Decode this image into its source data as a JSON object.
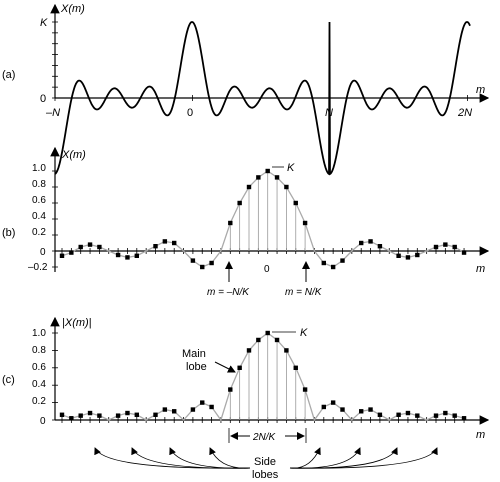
{
  "chart_data": [
    {
      "id": "a",
      "type": "line",
      "panel_label": "(a)",
      "ylabel": "X(m)",
      "xlabel": "m",
      "x_ticks": [
        "–N",
        "0",
        "N",
        "2N"
      ],
      "y_ticks": [
        "0",
        "K"
      ],
      "description_series": "periodic sinc, peaks of height K at m = −N, 0, N, 2N",
      "xlim": [
        -1,
        2
      ],
      "ylim": [
        -0.25,
        1
      ]
    },
    {
      "id": "b",
      "type": "scatter",
      "panel_label": "(b)",
      "ylabel": "X(m)",
      "xlabel": "m",
      "y_ticks": [
        "1.0",
        "0.8",
        "0.6",
        "0.4",
        "0.2",
        "0",
        "–0.2"
      ],
      "ylim": [
        -0.2,
        1.0
      ],
      "x_center_label": "0",
      "peak_label": "K",
      "annotations": [
        "m = –N/K",
        "m = N/K"
      ],
      "points": [
        -0.06,
        -0.02,
        0.05,
        0.08,
        0.05,
        0.0,
        -0.05,
        -0.08,
        -0.06,
        0.0,
        0.06,
        0.12,
        0.1,
        0.0,
        -0.12,
        -0.2,
        -0.15,
        0.0,
        0.35,
        0.6,
        0.8,
        0.92,
        1.0,
        0.92,
        0.8,
        0.6,
        0.35,
        0.0,
        -0.15,
        -0.2,
        -0.12,
        0.0,
        0.1,
        0.12,
        0.06,
        0.0,
        -0.06,
        -0.08,
        -0.05,
        0.0,
        0.05,
        0.08,
        0.05,
        -0.02
      ]
    },
    {
      "id": "c",
      "type": "scatter",
      "panel_label": "(c)",
      "ylabel": "|X(m)|",
      "xlabel": "m",
      "y_ticks": [
        "1.0",
        "0.8",
        "0.6",
        "0.4",
        "0.2",
        "0"
      ],
      "ylim": [
        0,
        1.0
      ],
      "peak_label": "K",
      "main_lobe_label": [
        "Main",
        "lobe"
      ],
      "width_label": "2N/K",
      "side_lobes_label": [
        "Side",
        "lobes"
      ],
      "points": [
        0.06,
        0.02,
        0.05,
        0.08,
        0.05,
        0.0,
        0.05,
        0.08,
        0.06,
        0.0,
        0.06,
        0.12,
        0.1,
        0.0,
        0.12,
        0.2,
        0.15,
        0.0,
        0.35,
        0.6,
        0.8,
        0.92,
        1.0,
        0.92,
        0.8,
        0.6,
        0.35,
        0.0,
        0.15,
        0.2,
        0.12,
        0.0,
        0.1,
        0.12,
        0.06,
        0.0,
        0.06,
        0.08,
        0.05,
        0.0,
        0.05,
        0.08,
        0.05,
        0.02
      ]
    }
  ]
}
